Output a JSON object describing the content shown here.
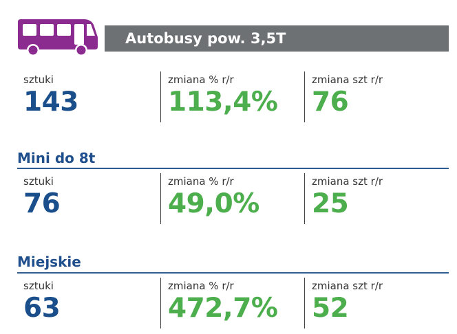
{
  "header": {
    "title": "Autobusy pow. 3,5T",
    "icon": "bus-icon",
    "icon_color": "#8b2a8f",
    "bar_color": "#6d7174"
  },
  "colors": {
    "heading": "#1f4e8c",
    "count_value": "#1a4f8b",
    "change_value": "#4cae4c"
  },
  "sections": [
    {
      "heading": "",
      "stats": [
        {
          "label": "sztuki",
          "value": "143"
        },
        {
          "label": "zmiana % r/r",
          "value": "113,4%"
        },
        {
          "label": "zmiana szt r/r",
          "value": "76"
        }
      ]
    },
    {
      "heading": "Mini do 8t",
      "stats": [
        {
          "label": "sztuki",
          "value": "76"
        },
        {
          "label": "zmiana % r/r",
          "value": "49,0%"
        },
        {
          "label": "zmiana szt r/r",
          "value": "25"
        }
      ]
    },
    {
      "heading": "Miejskie",
      "stats": [
        {
          "label": "sztuki",
          "value": "63"
        },
        {
          "label": "zmiana % r/r",
          "value": "472,7%"
        },
        {
          "label": "zmiana szt r/r",
          "value": "52"
        }
      ]
    }
  ]
}
